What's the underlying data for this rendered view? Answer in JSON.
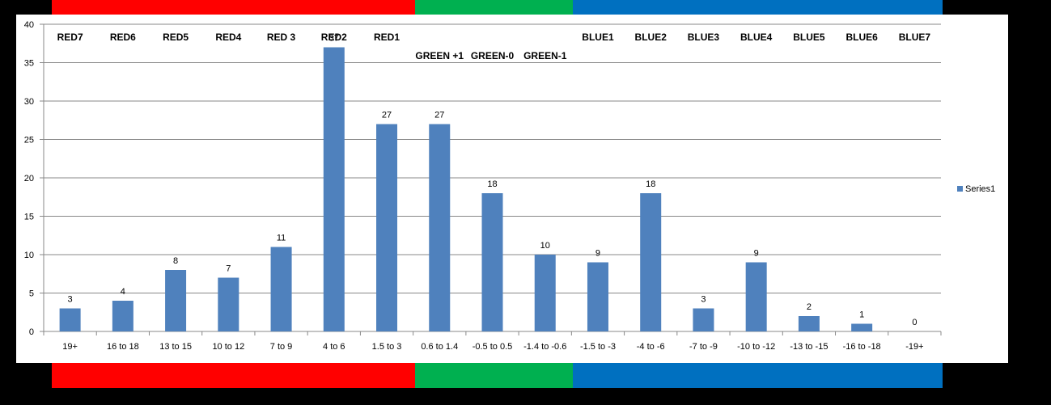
{
  "chart_data": {
    "type": "bar",
    "categories": [
      "19+",
      "16 to 18",
      "13 to 15",
      "10 to 12",
      "7 to 9",
      "4 to 6",
      "1.5 to 3",
      "0.6 to 1.4",
      "-0.5 to 0.5",
      "-1.4 to -0.6",
      "-1.5 to -3",
      "-4 to -6",
      "-7 to -9",
      "-10 to -12",
      "-13 to -15",
      "-16 to -18",
      "-19+"
    ],
    "series": [
      {
        "name": "Series1",
        "values": [
          3,
          4,
          8,
          7,
          11,
          37,
          27,
          27,
          18,
          10,
          9,
          18,
          3,
          9,
          2,
          1,
          0
        ],
        "color": "#4f81bd"
      }
    ],
    "ylim": [
      0,
      40
    ],
    "yticks": [
      0,
      5,
      10,
      15,
      20,
      25,
      30,
      35,
      40
    ],
    "grid": true,
    "legend": "right",
    "annotations": [
      {
        "text": "RED7",
        "at": "19+",
        "row": "top"
      },
      {
        "text": "RED6",
        "at": "16 to 18",
        "row": "top"
      },
      {
        "text": "RED5",
        "at": "13 to 15",
        "row": "top"
      },
      {
        "text": "RED4",
        "at": "10 to 12",
        "row": "top"
      },
      {
        "text": "RED 3",
        "at": "7 to 9",
        "row": "top"
      },
      {
        "text": "RED2",
        "at": "4 to 6",
        "row": "top"
      },
      {
        "text": "RED1",
        "at": "1.5 to 3",
        "row": "top"
      },
      {
        "text": "GREEN +1",
        "at": "0.6 to 1.4",
        "row": "second"
      },
      {
        "text": "GREEN-0",
        "at": "-0.5 to 0.5",
        "row": "second"
      },
      {
        "text": "GREEN-1",
        "at": "-1.4 to -0.6",
        "row": "second"
      },
      {
        "text": "BLUE1",
        "at": "-1.5 to -3",
        "row": "top"
      },
      {
        "text": "BLUE2",
        "at": "-4 to -6",
        "row": "top"
      },
      {
        "text": "BLUE3",
        "at": "-7 to -9",
        "row": "top"
      },
      {
        "text": "BLUE4",
        "at": "-10 to -12",
        "row": "top"
      },
      {
        "text": "BLUE5",
        "at": "-13 to -15",
        "row": "top"
      },
      {
        "text": "BLUE6",
        "at": "-16 to -18",
        "row": "top"
      },
      {
        "text": "BLUE7",
        "at": "-19+",
        "row": "top"
      }
    ],
    "color_bands": [
      {
        "name": "red",
        "color": "#ff0000",
        "from": "19+",
        "to": "1.5 to 3"
      },
      {
        "name": "green",
        "color": "#00b050",
        "from": "0.6 to 1.4",
        "to": "-1.4 to -0.6"
      },
      {
        "name": "blue",
        "color": "#0070c0",
        "from": "-1.5 to -3",
        "to": "-19+"
      }
    ]
  }
}
